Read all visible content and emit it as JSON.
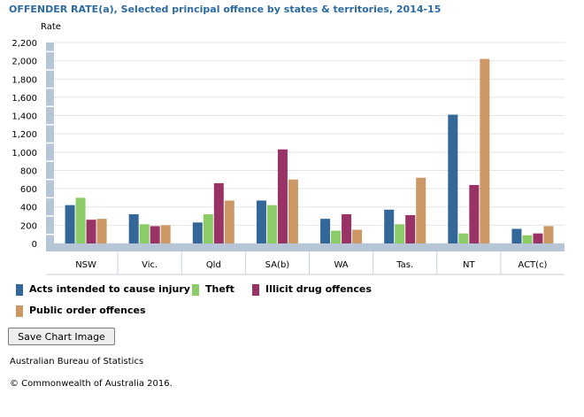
{
  "title": "OFFENDER RATE(a), Selected principal offence by states & territories, 2014-15",
  "save_button_label": "Save Chart Image",
  "source": "Australian Bureau of Statistics",
  "copyright": "© Commonwealth of Australia 2016.",
  "chart_data": {
    "type": "bar",
    "ylabel": "Rate",
    "ylim": [
      0,
      2200
    ],
    "yticks": [
      0,
      200,
      400,
      600,
      800,
      1000,
      1200,
      1400,
      1600,
      1800,
      2000,
      2200
    ],
    "ytick_labels": [
      "0",
      "200",
      "400",
      "600",
      "800",
      "1,000",
      "1,200",
      "1,400",
      "1,600",
      "1,800",
      "2,000",
      "2,200"
    ],
    "grid": true,
    "legend_position": "bottom",
    "categories": [
      "NSW",
      "Vic.",
      "Qld",
      "SA(b)",
      "WA",
      "Tas.",
      "NT",
      "ACT(c)"
    ],
    "series": [
      {
        "name": "Acts intended to cause injury",
        "color": "#336699",
        "values": [
          420,
          320,
          230,
          470,
          270,
          370,
          1410,
          160
        ]
      },
      {
        "name": "Theft",
        "color": "#8ccc66",
        "values": [
          500,
          210,
          320,
          420,
          140,
          210,
          110,
          90
        ]
      },
      {
        "name": "Illicit drug offences",
        "color": "#993366",
        "values": [
          260,
          190,
          660,
          1030,
          320,
          310,
          640,
          110
        ]
      },
      {
        "name": "Public order offences",
        "color": "#cc9966",
        "values": [
          270,
          200,
          470,
          700,
          150,
          720,
          2020,
          190
        ]
      }
    ]
  }
}
